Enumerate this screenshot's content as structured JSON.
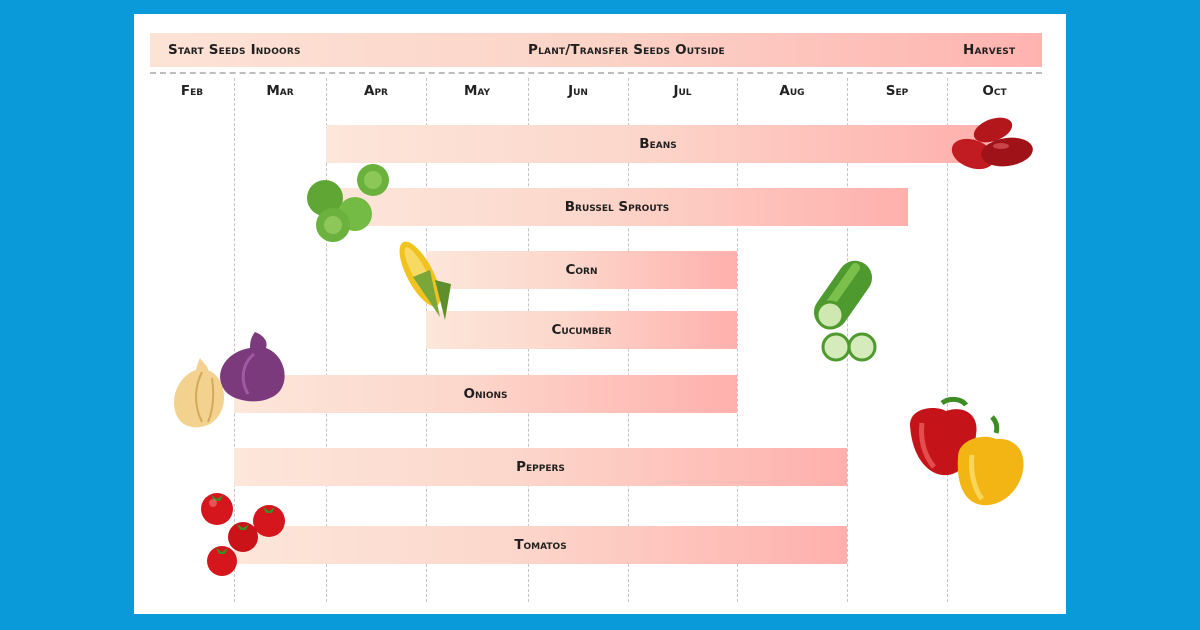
{
  "header": {
    "start_label": "Start Seeds Indoors",
    "plant_label": "Plant/Transfer Seeds Outside",
    "harvest_label": "Harvest"
  },
  "chart_data": {
    "type": "bar",
    "categories": [
      "Feb",
      "Mar",
      "Apr",
      "May",
      "Jun",
      "Jul",
      "Aug",
      "Sep",
      "Oct"
    ],
    "series": [
      {
        "name": "Beans",
        "start": "Apr",
        "end": "Oct"
      },
      {
        "name": "Brussel Sprouts",
        "start": "Apr",
        "end": "Sep"
      },
      {
        "name": "Corn",
        "start": "May",
        "end": "Aug"
      },
      {
        "name": "Cucumber",
        "start": "May",
        "end": "Aug"
      },
      {
        "name": "Onions",
        "start": "Mar",
        "end": "Aug"
      },
      {
        "name": "Peppers",
        "start": "Mar",
        "end": "Sep"
      },
      {
        "name": "Tomatos",
        "start": "Mar",
        "end": "Sep"
      }
    ],
    "legend": "top",
    "grid": true,
    "colors": {
      "bar_start": "#fde6da",
      "bar_end": "#ffb0ad",
      "background": "#0a9ad9"
    }
  }
}
